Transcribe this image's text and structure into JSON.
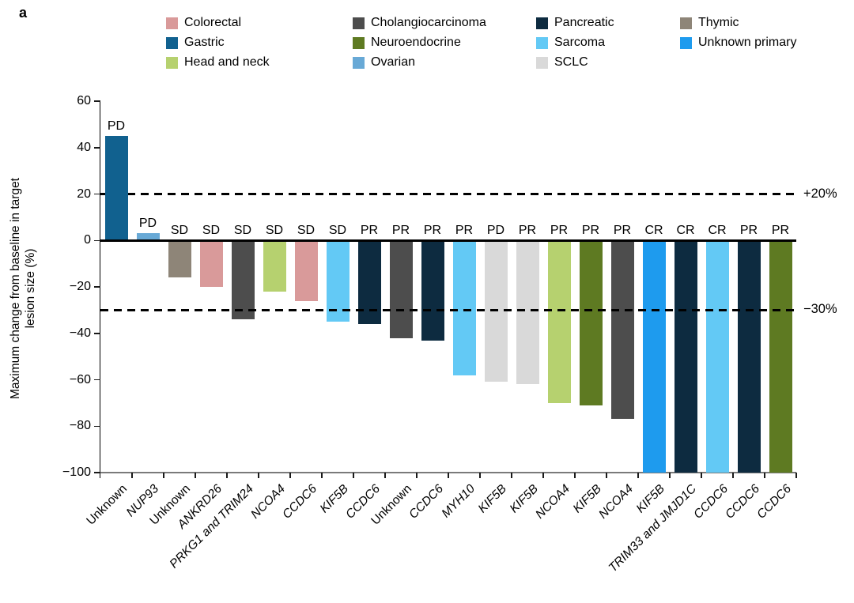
{
  "panel_label": "a",
  "colors": {
    "Colorectal": "#d99a9a",
    "Gastric": "#11618f",
    "Head and neck": "#b6d16f",
    "Cholangiocarcinoma": "#4d4d4d",
    "Neuroendocrine": "#5e7a22",
    "Ovarian": "#68a9d6",
    "Pancreatic": "#0d2b40",
    "Sarcoma": "#63c9f5",
    "SCLC": "#d9d9d9",
    "Thymic": "#8e8578",
    "Unknown primary": "#1e9bee"
  },
  "legend": {
    "items": [
      {
        "label": "Colorectal",
        "color_key": "Colorectal",
        "col": 0,
        "row": 0
      },
      {
        "label": "Gastric",
        "color_key": "Gastric",
        "col": 0,
        "row": 1
      },
      {
        "label": "Head and neck",
        "color_key": "Head and neck",
        "col": 0,
        "row": 2
      },
      {
        "label": "Cholangiocarcinoma",
        "color_key": "Cholangiocarcinoma",
        "col": 1,
        "row": 0
      },
      {
        "label": "Neuroendocrine",
        "color_key": "Neuroendocrine",
        "col": 1,
        "row": 1
      },
      {
        "label": "Ovarian",
        "color_key": "Ovarian",
        "col": 1,
        "row": 2
      },
      {
        "label": "Pancreatic",
        "color_key": "Pancreatic",
        "col": 2,
        "row": 0
      },
      {
        "label": "Sarcoma",
        "color_key": "Sarcoma",
        "col": 2,
        "row": 1
      },
      {
        "label": "SCLC",
        "color_key": "SCLC",
        "col": 2,
        "row": 2
      },
      {
        "label": "Thymic",
        "color_key": "Thymic",
        "col": 3,
        "row": 0
      },
      {
        "label": "Unknown primary",
        "color_key": "Unknown primary",
        "col": 3,
        "row": 1
      }
    ]
  },
  "chart_data": {
    "type": "bar",
    "ylabel": "Maximum change from baseline in target lesion size (%)",
    "ylabel_lines": [
      "Maximum change from baseline in target",
      "lesion size (%)"
    ],
    "ylim": [
      -100,
      60
    ],
    "yticks": [
      60,
      40,
      20,
      0,
      -20,
      -40,
      -60,
      -80,
      -100
    ],
    "ytick_labels": [
      "60",
      "40",
      "20",
      "0",
      "−20",
      "−40",
      "−60",
      "−80",
      "−100"
    ],
    "grid": false,
    "reference_lines": [
      {
        "value": 20,
        "label": "+20%",
        "drawn_over_bars": false
      },
      {
        "value": -30,
        "label": "−30%",
        "drawn_over_bars": true
      }
    ],
    "bars": [
      {
        "x_label": "Unknown",
        "italic": false,
        "cancer_type": "Gastric",
        "value": 45,
        "response": "PD"
      },
      {
        "x_label": "NUP93",
        "italic": true,
        "cancer_type": "Ovarian",
        "value": 3,
        "response": "PD"
      },
      {
        "x_label": "Unknown",
        "italic": false,
        "cancer_type": "Thymic",
        "value": -16,
        "response": "SD"
      },
      {
        "x_label": "ANKRD26",
        "italic": true,
        "cancer_type": "Colorectal",
        "value": -20,
        "response": "SD"
      },
      {
        "x_label": "PRKG1 and TRIM24",
        "italic": true,
        "cancer_type": "Cholangiocarcinoma",
        "value": -34,
        "response": "SD"
      },
      {
        "x_label": "NCOA4",
        "italic": true,
        "cancer_type": "Head and neck",
        "value": -22,
        "response": "SD"
      },
      {
        "x_label": "CCDC6",
        "italic": true,
        "cancer_type": "Colorectal",
        "value": -26,
        "response": "SD"
      },
      {
        "x_label": "KIF5B",
        "italic": true,
        "cancer_type": "Sarcoma",
        "value": -35,
        "response": "SD"
      },
      {
        "x_label": "CCDC6",
        "italic": true,
        "cancer_type": "Pancreatic",
        "value": -36,
        "response": "PR"
      },
      {
        "x_label": "Unknown",
        "italic": false,
        "cancer_type": "Cholangiocarcinoma",
        "value": -42,
        "response": "PR"
      },
      {
        "x_label": "CCDC6",
        "italic": true,
        "cancer_type": "Pancreatic",
        "value": -43,
        "response": "PR"
      },
      {
        "x_label": "MYH10",
        "italic": true,
        "cancer_type": "Sarcoma",
        "value": -58,
        "response": "PR"
      },
      {
        "x_label": "KIF5B",
        "italic": true,
        "cancer_type": "SCLC",
        "value": -61,
        "response": "PD"
      },
      {
        "x_label": "KIF5B",
        "italic": true,
        "cancer_type": "SCLC",
        "value": -62,
        "response": "PR"
      },
      {
        "x_label": "NCOA4",
        "italic": true,
        "cancer_type": "Head and neck",
        "value": -70,
        "response": "PR"
      },
      {
        "x_label": "KIF5B",
        "italic": true,
        "cancer_type": "Neuroendocrine",
        "value": -71,
        "response": "PR"
      },
      {
        "x_label": "NCOA4",
        "italic": true,
        "cancer_type": "Cholangiocarcinoma",
        "value": -77,
        "response": "PR"
      },
      {
        "x_label": "KIF5B",
        "italic": true,
        "cancer_type": "Unknown primary",
        "value": -100,
        "response": "CR"
      },
      {
        "x_label": "TRIM33 and JMJD1C",
        "italic": true,
        "cancer_type": "Pancreatic",
        "value": -100,
        "response": "CR"
      },
      {
        "x_label": "CCDC6",
        "italic": true,
        "cancer_type": "Sarcoma",
        "value": -100,
        "response": "CR"
      },
      {
        "x_label": "CCDC6",
        "italic": true,
        "cancer_type": "Pancreatic",
        "value": -100,
        "response": "PR"
      },
      {
        "x_label": "CCDC6",
        "italic": true,
        "cancer_type": "Neuroendocrine",
        "value": -100,
        "response": "PR"
      }
    ]
  }
}
